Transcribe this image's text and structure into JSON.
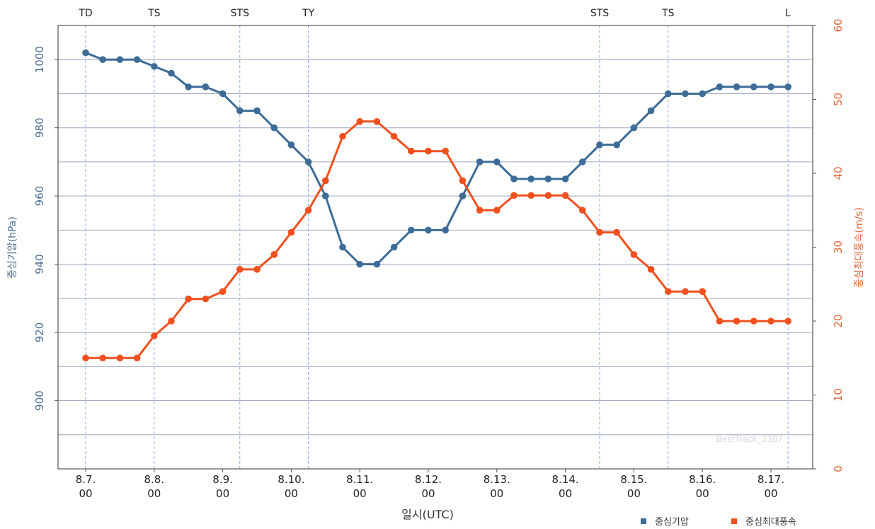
{
  "chart_data": {
    "type": "line",
    "xlabel": "일시(UTC)",
    "ylabel_left": "중심기압(hPa)",
    "ylabel_right": "중심최대풍속(m/s)",
    "ylim_left": [
      880,
      1010
    ],
    "ylim_right": [
      0,
      60
    ],
    "yticks_left": [
      900,
      920,
      940,
      960,
      980,
      1000
    ],
    "yticks_right": [
      0,
      10,
      20,
      30,
      40,
      50,
      60
    ],
    "xtick_labels": [
      [
        "8.7.",
        "00"
      ],
      [
        "8.8.",
        "00"
      ],
      [
        "8.9.",
        "00"
      ],
      [
        "8.10.",
        "00"
      ],
      [
        "8.11.",
        "00"
      ],
      [
        "8.12.",
        "00"
      ],
      [
        "8.13.",
        "00"
      ],
      [
        "8.14.",
        "00"
      ],
      [
        "8.15.",
        "00"
      ],
      [
        "8.16.",
        "00"
      ],
      [
        "8.17.",
        "00"
      ]
    ],
    "grid": true,
    "legend_position": "bottom-right",
    "watermark": "BestTrack_2307",
    "stage_markers": [
      {
        "label": "TD",
        "x": 0
      },
      {
        "label": "TS",
        "x": 4
      },
      {
        "label": "STS",
        "x": 9
      },
      {
        "label": "TY",
        "x": 13
      },
      {
        "label": "STS",
        "x": 30
      },
      {
        "label": "TS",
        "x": 34
      },
      {
        "label": "L",
        "x": 41
      }
    ],
    "series": [
      {
        "name": "중심기압",
        "axis": "left",
        "color": "#3c6c97",
        "values": [
          1002,
          1000,
          1000,
          1000,
          998,
          996,
          992,
          992,
          990,
          985,
          985,
          980,
          975,
          970,
          960,
          945,
          940,
          940,
          945,
          950,
          950,
          950,
          960,
          970,
          970,
          965,
          965,
          965,
          965,
          970,
          975,
          975,
          980,
          985,
          990,
          990,
          990,
          992,
          992,
          992,
          992,
          992
        ]
      },
      {
        "name": "중심최대풍속",
        "axis": "right",
        "color": "#f0501e",
        "values": [
          15,
          15,
          15,
          15,
          18,
          20,
          23,
          23,
          24,
          27,
          27,
          29,
          32,
          35,
          39,
          45,
          47,
          47,
          45,
          43,
          43,
          43,
          39,
          35,
          35,
          37,
          37,
          37,
          37,
          35,
          32,
          32,
          29,
          27,
          24,
          24,
          24,
          20,
          20,
          20,
          20,
          20
        ]
      }
    ]
  }
}
